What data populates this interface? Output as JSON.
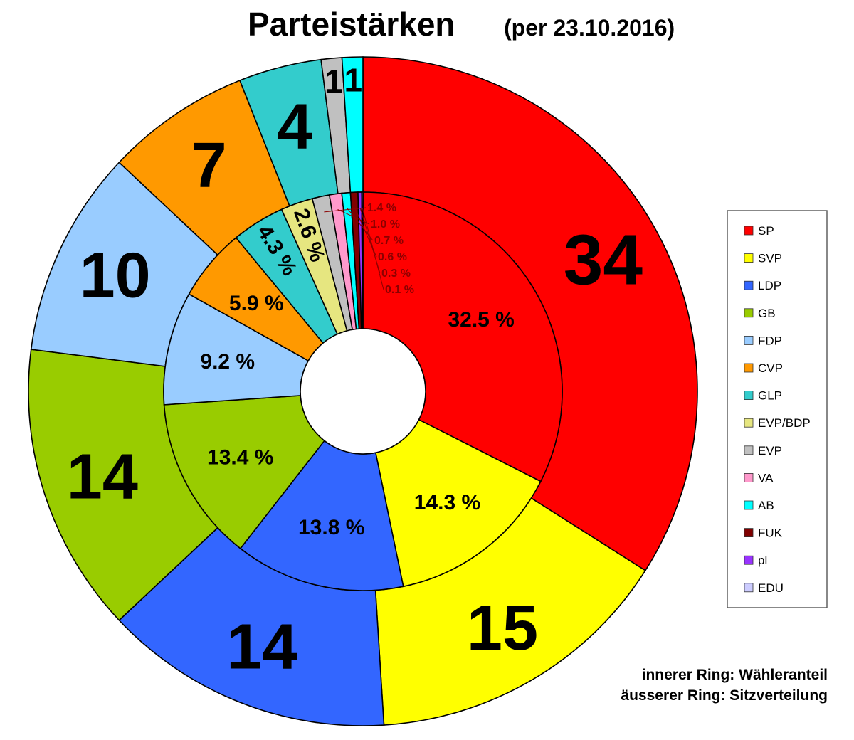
{
  "chart_data": {
    "type": "pie",
    "title": "Parteistärken",
    "subtitle": "(per 23.10.2016)",
    "legend_placement": "right",
    "notes": [
      "innerer Ring: Wähleranteil",
      "äusserer Ring: Sitzverteilung"
    ],
    "parties": [
      {
        "name": "SP",
        "color": "#ff0000"
      },
      {
        "name": "SVP",
        "color": "#ffff00"
      },
      {
        "name": "LDP",
        "color": "#3366ff"
      },
      {
        "name": "GB",
        "color": "#99cc00"
      },
      {
        "name": "FDP",
        "color": "#99ccff"
      },
      {
        "name": "CVP",
        "color": "#ff9900"
      },
      {
        "name": "GLP",
        "color": "#33cccc"
      },
      {
        "name": "EVP/BDP",
        "color": "#e6e680"
      },
      {
        "name": "EVP",
        "color": "#c0c0c0"
      },
      {
        "name": "VA",
        "color": "#ff99cc"
      },
      {
        "name": "AB",
        "color": "#00ffff"
      },
      {
        "name": "FUK",
        "color": "#800000"
      },
      {
        "name": "pl",
        "color": "#9933ff"
      },
      {
        "name": "EDU",
        "color": "#ccccff"
      }
    ],
    "outer_ring": {
      "series": "Sitzverteilung",
      "order": [
        "SP",
        "SVP",
        "LDP",
        "GB",
        "FDP",
        "CVP",
        "GLP",
        "EVP",
        "AB"
      ],
      "values": [
        34,
        15,
        14,
        14,
        10,
        7,
        4,
        1,
        1
      ],
      "labels": [
        "34",
        "15",
        "14",
        "14",
        "10",
        "7",
        "4",
        "1",
        "1"
      ]
    },
    "inner_ring": {
      "series": "Wähleranteil",
      "unit": "%",
      "order": [
        "SP",
        "SVP",
        "LDP",
        "GB",
        "FDP",
        "CVP",
        "GLP",
        "EVP/BDP",
        "EVP",
        "VA",
        "AB",
        "FUK",
        "pl",
        "EDU"
      ],
      "values": [
        32.5,
        14.3,
        13.8,
        13.4,
        9.2,
        5.9,
        4.3,
        2.6,
        1.4,
        1.0,
        0.7,
        0.6,
        0.3,
        0.1
      ],
      "labels": [
        "32.5 %",
        "14.3 %",
        "13.8 %",
        "13.4 %",
        "9.2 %",
        "5.9 %",
        "4.3 %",
        "2.6 %",
        "1.4 %",
        "1.0 %",
        "0.7 %",
        "0.6 %",
        "0.3 %",
        "0.1 %"
      ]
    }
  }
}
